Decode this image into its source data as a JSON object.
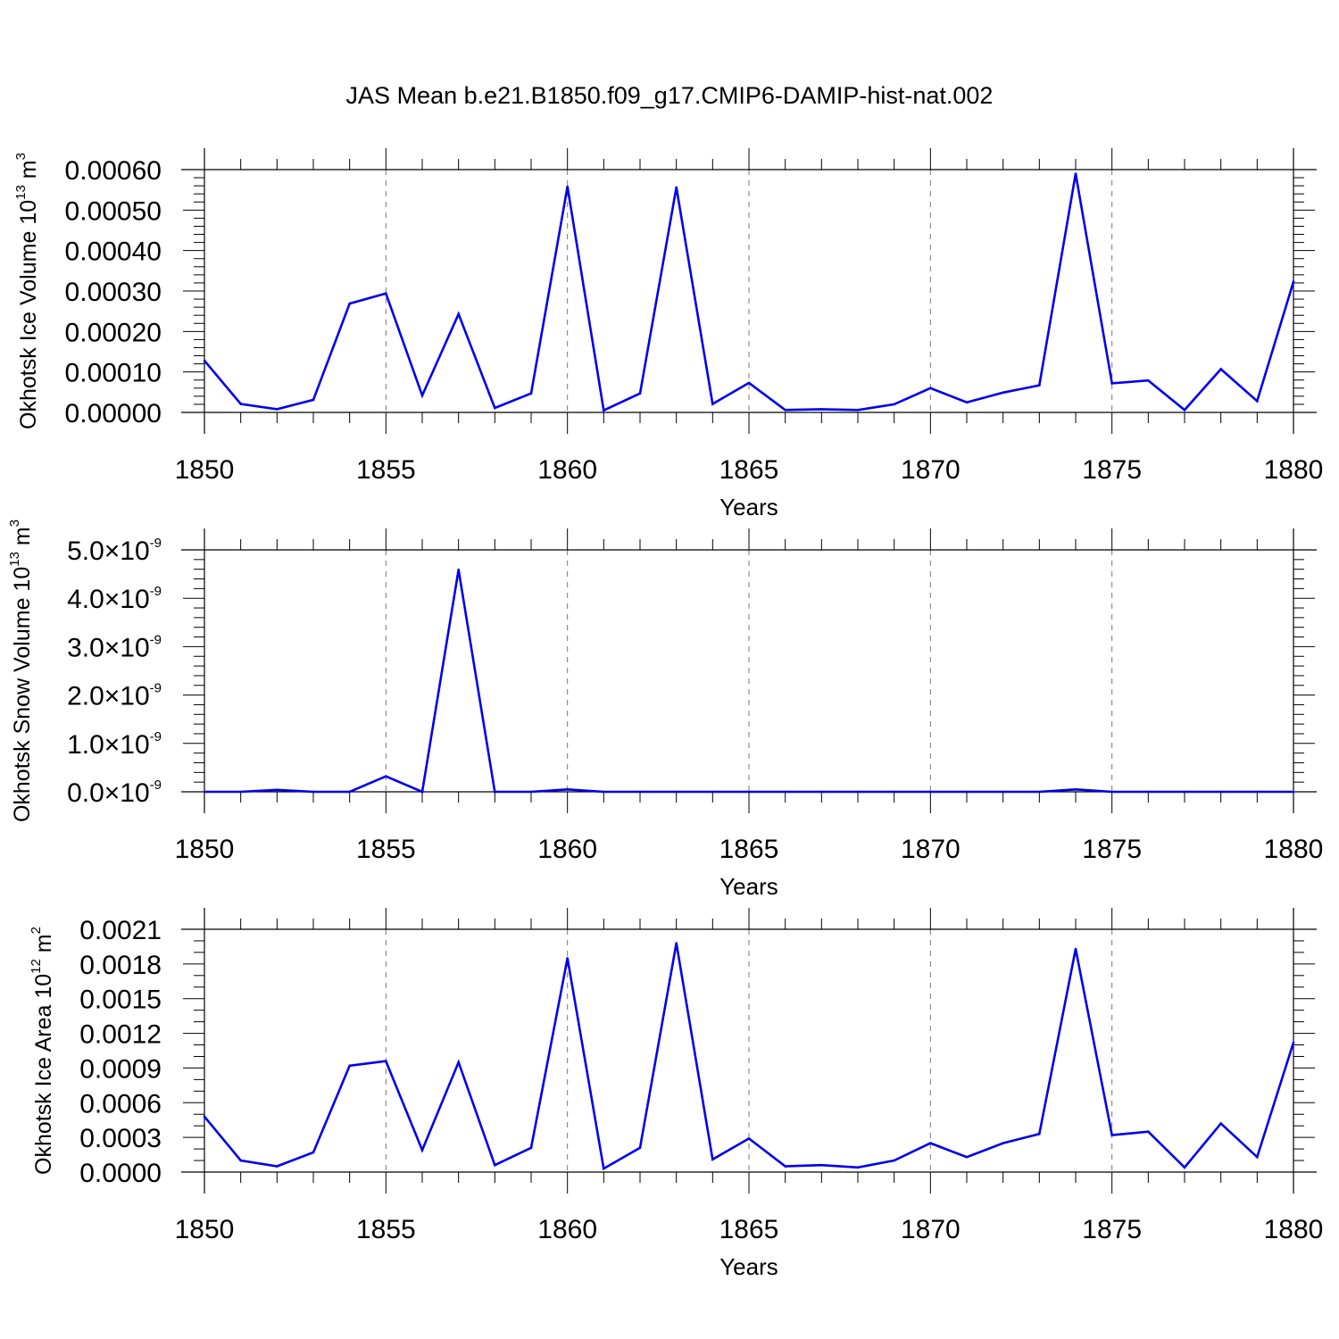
{
  "title": "JAS Mean b.e21.B1850.f09_g17.CMIP6-DAMIP-hist-nat.002",
  "colors": {
    "series": "#0000ee",
    "axis": "#000000",
    "grid": "#777777"
  },
  "chart_data": [
    {
      "type": "line",
      "ylabel": {
        "text": "Okhotsk Ice Volume 10",
        "exp": "13",
        "unit": "m",
        "unit_exp": "3"
      },
      "xlabel": "Years",
      "xlim": [
        1850,
        1880
      ],
      "x_ticks": [
        1850,
        1855,
        1860,
        1865,
        1870,
        1875,
        1880
      ],
      "x_tick_labels": [
        "1850",
        "1855",
        "1860",
        "1865",
        "1870",
        "1875",
        "1880"
      ],
      "ylim": [
        0,
        0.0006
      ],
      "y_ticks": [
        0,
        0.0001,
        0.0002,
        0.0003,
        0.0004,
        0.0005,
        0.0006
      ],
      "y_tick_labels": [
        "0.00000",
        "0.00010",
        "0.00020",
        "0.00030",
        "0.00040",
        "0.00050",
        "0.00060"
      ],
      "y_minor_step": 2e-05,
      "grid": "x-dashed",
      "x": [
        1850,
        1851,
        1852,
        1853,
        1854,
        1855,
        1856,
        1857,
        1858,
        1859,
        1860,
        1861,
        1862,
        1863,
        1864,
        1865,
        1866,
        1867,
        1868,
        1869,
        1870,
        1871,
        1872,
        1873,
        1874,
        1875,
        1876,
        1877,
        1878,
        1879,
        1880
      ],
      "values": [
        0.000128,
        2.1e-05,
        8e-06,
        3.1e-05,
        0.000269,
        0.000294,
        4.2e-05,
        0.000243,
        1.1e-05,
        4.7e-05,
        0.000558,
        5e-06,
        4.7e-05,
        0.000556,
        2.1e-05,
        7.3e-05,
        6e-06,
        8e-06,
        6e-06,
        2e-05,
        6e-05,
        2.5e-05,
        4.9e-05,
        6.7e-05,
        0.00059,
        7.2e-05,
        7.9e-05,
        6e-06,
        0.000107,
        2.8e-05,
        0.000323
      ]
    },
    {
      "type": "line",
      "ylabel": {
        "text": "Okhotsk Snow Volume 10",
        "exp": "13",
        "unit": "m",
        "unit_exp": "3"
      },
      "xlabel": "Years",
      "xlim": [
        1850,
        1880
      ],
      "x_ticks": [
        1850,
        1855,
        1860,
        1865,
        1870,
        1875,
        1880
      ],
      "x_tick_labels": [
        "1850",
        "1855",
        "1860",
        "1865",
        "1870",
        "1875",
        "1880"
      ],
      "ylim": [
        0,
        5e-09
      ],
      "y_ticks": [
        0,
        1e-09,
        2e-09,
        3e-09,
        4e-09,
        5e-09
      ],
      "y_tick_labels": [
        "0.0",
        "1.0",
        "2.0",
        "3.0",
        "4.0",
        "5.0"
      ],
      "y_tick_suffix": "×10",
      "y_tick_exp": "-9",
      "y_minor_step": 2e-10,
      "grid": "x-dashed",
      "x": [
        1850,
        1851,
        1852,
        1853,
        1854,
        1855,
        1856,
        1857,
        1858,
        1859,
        1860,
        1861,
        1862,
        1863,
        1864,
        1865,
        1866,
        1867,
        1868,
        1869,
        1870,
        1871,
        1872,
        1873,
        1874,
        1875,
        1876,
        1877,
        1878,
        1879,
        1880
      ],
      "values": [
        0.0,
        0.0,
        4e-11,
        0.0,
        0.0,
        3.2e-10,
        0.0,
        4.59e-09,
        0.0,
        0.0,
        5e-11,
        0.0,
        0.0,
        0.0,
        0.0,
        0.0,
        0.0,
        0.0,
        0.0,
        0.0,
        0.0,
        0.0,
        0.0,
        0.0,
        5e-11,
        0.0,
        0.0,
        0.0,
        0.0,
        0.0,
        0.0
      ]
    },
    {
      "type": "line",
      "ylabel": {
        "text": "Okhotsk Ice Area 10",
        "exp": "12",
        "unit": "m",
        "unit_exp": "2"
      },
      "xlabel": "Years",
      "xlim": [
        1850,
        1880
      ],
      "x_ticks": [
        1850,
        1855,
        1860,
        1865,
        1870,
        1875,
        1880
      ],
      "x_tick_labels": [
        "1850",
        "1855",
        "1860",
        "1865",
        "1870",
        "1875",
        "1880"
      ],
      "ylim": [
        0,
        0.0021
      ],
      "y_ticks": [
        0,
        0.0003,
        0.0006,
        0.0009,
        0.0012,
        0.0015,
        0.0018,
        0.0021
      ],
      "y_tick_labels": [
        "0.0000",
        "0.0003",
        "0.0006",
        "0.0009",
        "0.0012",
        "0.0015",
        "0.0018",
        "0.0021"
      ],
      "y_minor_step": 0.0001,
      "grid": "x-dashed",
      "x": [
        1850,
        1851,
        1852,
        1853,
        1854,
        1855,
        1856,
        1857,
        1858,
        1859,
        1860,
        1861,
        1862,
        1863,
        1864,
        1865,
        1866,
        1867,
        1868,
        1869,
        1870,
        1871,
        1872,
        1873,
        1874,
        1875,
        1876,
        1877,
        1878,
        1879,
        1880
      ],
      "values": [
        0.00048,
        0.0001,
        5e-05,
        0.00017,
        0.00092,
        0.00096,
        0.00019,
        0.00095,
        6e-05,
        0.00021,
        0.00185,
        3e-05,
        0.00021,
        0.00198,
        0.00011,
        0.00029,
        5e-05,
        6e-05,
        4e-05,
        0.0001,
        0.00025,
        0.00013,
        0.00025,
        0.00033,
        0.00193,
        0.00032,
        0.00035,
        4e-05,
        0.00042,
        0.00013,
        0.00112
      ]
    }
  ]
}
